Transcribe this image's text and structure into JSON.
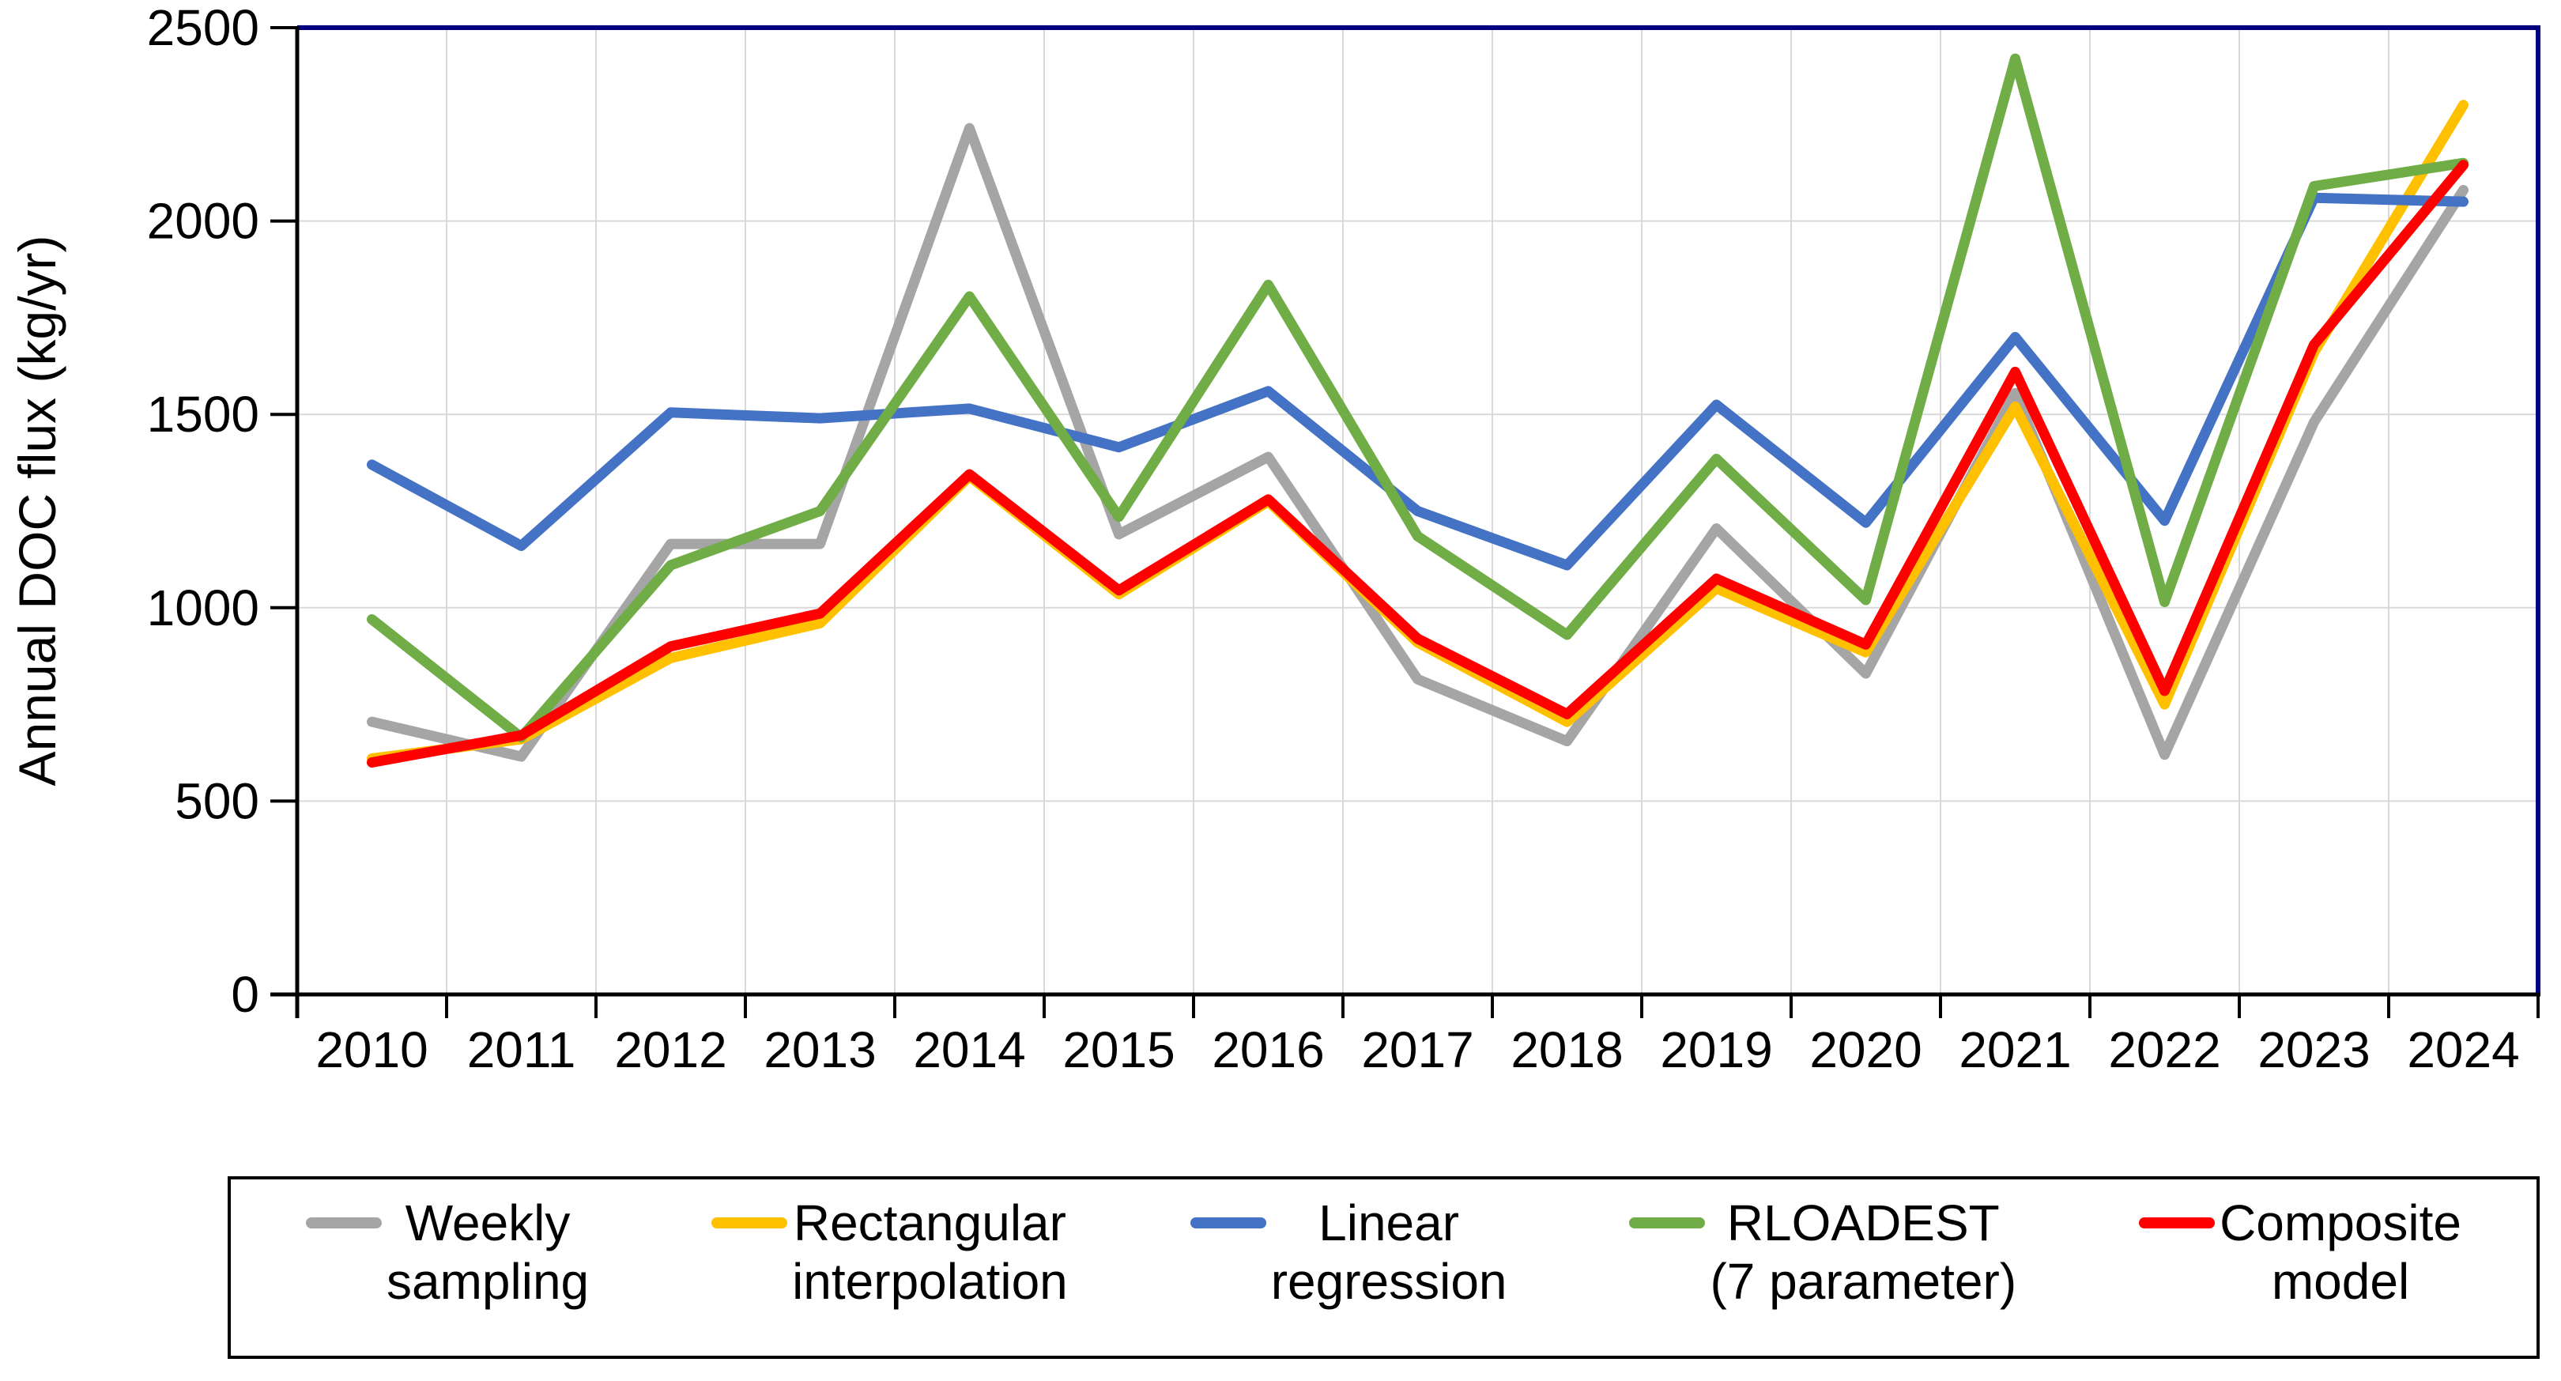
{
  "page": {
    "background_color": "#FFFFFF"
  },
  "chart_data": {
    "type": "line",
    "title": "",
    "xlabel": "",
    "ylabel": "Annual DOC flux (kg/yr)",
    "ylim": [
      0,
      2500
    ],
    "ytick_step": 500,
    "ytick_labels": [
      "0",
      "500",
      "1000",
      "1500",
      "2000",
      "2500"
    ],
    "grid": true,
    "legend_position": "bottom",
    "categories": [
      "2010",
      "2011",
      "2012",
      "2013",
      "2014",
      "2015",
      "2016",
      "2017",
      "2018",
      "2019",
      "2020",
      "2021",
      "2022",
      "2023",
      "2024"
    ],
    "series": [
      {
        "name": "Weekly sampling",
        "legend_lines": [
          "Weekly",
          "sampling"
        ],
        "color": "#A5A5A5",
        "values": [
          705,
          615,
          1165,
          1165,
          2240,
          1190,
          1390,
          815,
          655,
          1205,
          830,
          1555,
          620,
          1480,
          2080
        ]
      },
      {
        "name": "Rectangular interpolation",
        "legend_lines": [
          "Rectangular",
          "interpolation"
        ],
        "color": "#FFC000",
        "values": [
          610,
          660,
          870,
          960,
          1340,
          1035,
          1275,
          910,
          705,
          1050,
          885,
          1520,
          750,
          1660,
          2300
        ]
      },
      {
        "name": "Linear regression",
        "legend_lines": [
          "Linear",
          "regression"
        ],
        "color": "#4472C4",
        "values": [
          1370,
          1160,
          1505,
          1490,
          1515,
          1415,
          1560,
          1250,
          1110,
          1525,
          1220,
          1700,
          1225,
          2060,
          2050
        ]
      },
      {
        "name": "RLOADEST (7 parameter)",
        "legend_lines": [
          "RLOADEST",
          "(7 parameter)"
        ],
        "color": "#70AD47",
        "values": [
          970,
          665,
          1110,
          1250,
          1805,
          1235,
          1835,
          1185,
          930,
          1385,
          1020,
          2420,
          1015,
          2090,
          2150
        ]
      },
      {
        "name": "Composite model",
        "legend_lines": [
          "Composite",
          "model"
        ],
        "color": "#FF0000",
        "values": [
          600,
          670,
          900,
          985,
          1345,
          1045,
          1280,
          920,
          725,
          1075,
          905,
          1610,
          785,
          1680,
          2145
        ]
      }
    ],
    "style_colors": {
      "gridline": "#D9D9D9",
      "axis": "#000000",
      "plot_border_top_right": "#000080",
      "tick_text": "#000000"
    }
  }
}
